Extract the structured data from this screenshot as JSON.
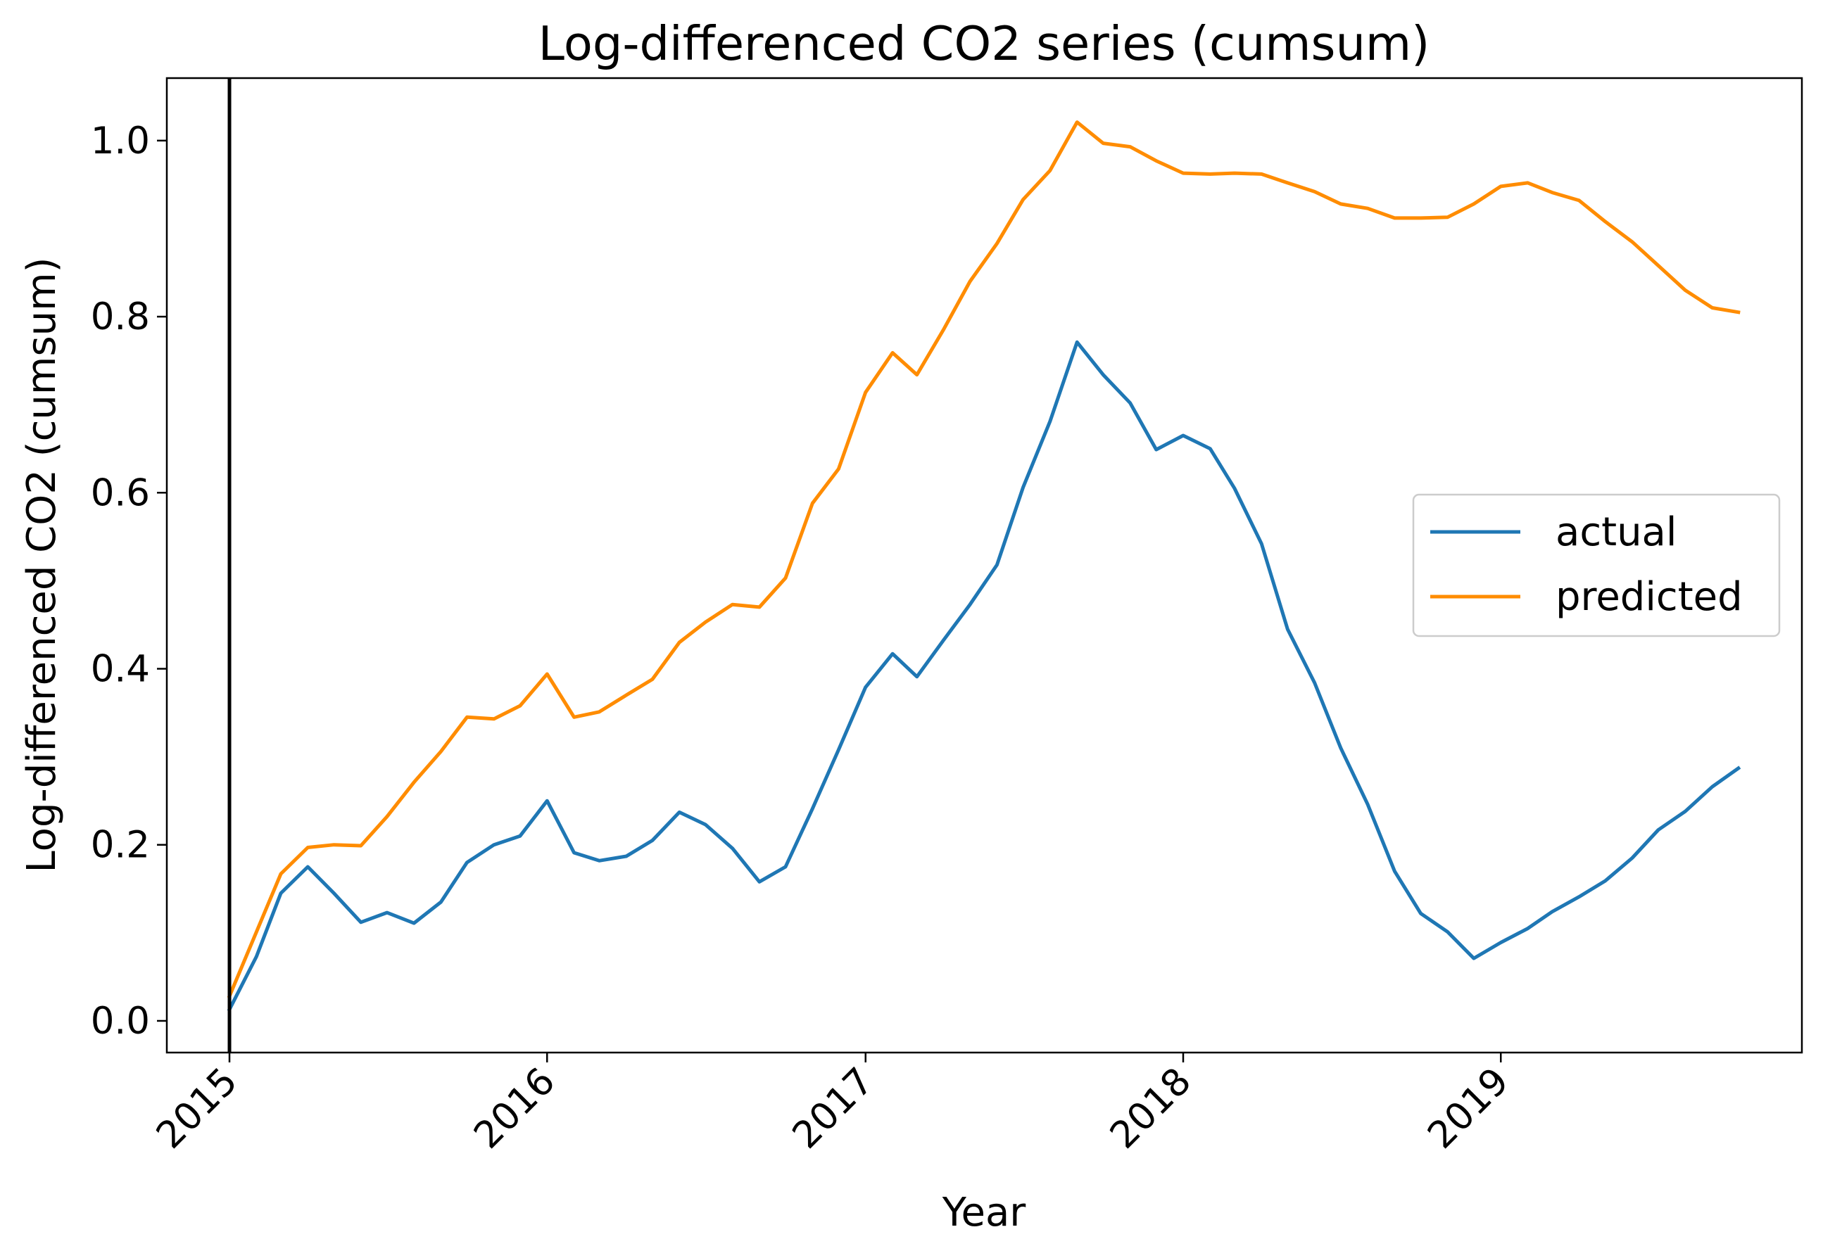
{
  "chart_data": {
    "type": "line",
    "title": "Log-differenced CO2 series (cumsum)",
    "xlabel": "Year",
    "ylabel": "Log-differenced CO2 (cumsum)",
    "xlim": [
      "2014-10-21",
      "2019-12-13"
    ],
    "ylim": [
      -0.036,
      1.071
    ],
    "x_ticks": [
      "2015",
      "2016",
      "2017",
      "2018",
      "2019"
    ],
    "x_tick_dates": [
      "2015-01-01",
      "2016-01-01",
      "2017-01-01",
      "2018-01-01",
      "2019-01-01"
    ],
    "y_ticks": [
      0.0,
      0.2,
      0.4,
      0.6,
      0.8,
      1.0
    ],
    "y_tick_labels": [
      "0.0",
      "0.2",
      "0.4",
      "0.6",
      "0.8",
      "1.0"
    ],
    "vertical_line": "2015-01-01",
    "grid": false,
    "legend_position": "center-right",
    "x": [
      "2015-01-01",
      "2015-02-01",
      "2015-03-01",
      "2015-04-01",
      "2015-05-01",
      "2015-06-01",
      "2015-07-01",
      "2015-08-01",
      "2015-09-01",
      "2015-10-01",
      "2015-11-01",
      "2015-12-01",
      "2016-01-01",
      "2016-02-01",
      "2016-03-01",
      "2016-04-01",
      "2016-05-01",
      "2016-06-01",
      "2016-07-01",
      "2016-08-01",
      "2016-09-01",
      "2016-10-01",
      "2016-11-01",
      "2016-12-01",
      "2017-01-01",
      "2017-02-01",
      "2017-03-01",
      "2017-04-01",
      "2017-05-01",
      "2017-06-01",
      "2017-07-01",
      "2017-08-01",
      "2017-09-01",
      "2017-10-01",
      "2017-11-01",
      "2017-12-01",
      "2018-01-01",
      "2018-02-01",
      "2018-03-01",
      "2018-04-01",
      "2018-05-01",
      "2018-06-01",
      "2018-07-01",
      "2018-08-01",
      "2018-09-01",
      "2018-10-01",
      "2018-11-01",
      "2018-12-01",
      "2019-01-01",
      "2019-02-01",
      "2019-03-01",
      "2019-04-01",
      "2019-05-01",
      "2019-06-01",
      "2019-07-01",
      "2019-08-01",
      "2019-09-01",
      "2019-10-01"
    ],
    "series": [
      {
        "name": "actual",
        "color": "#1f77b4",
        "values": [
          0.013,
          0.073,
          0.145,
          0.175,
          0.145,
          0.112,
          0.123,
          0.111,
          0.135,
          0.18,
          0.2,
          0.21,
          0.25,
          0.191,
          0.182,
          0.187,
          0.205,
          0.237,
          0.223,
          0.196,
          0.158,
          0.175,
          0.241,
          0.308,
          0.379,
          0.417,
          0.391,
          0.433,
          0.473,
          0.518,
          0.606,
          0.681,
          0.771,
          0.734,
          0.702,
          0.649,
          0.665,
          0.65,
          0.605,
          0.542,
          0.445,
          0.384,
          0.31,
          0.246,
          0.17,
          0.122,
          0.101,
          0.071,
          0.089,
          0.105,
          0.124,
          0.141,
          0.159,
          0.185,
          0.217,
          0.238,
          0.266,
          0.287
        ]
      },
      {
        "name": "predicted",
        "color": "#ff8c00",
        "values": [
          0.028,
          0.101,
          0.167,
          0.197,
          0.2,
          0.199,
          0.232,
          0.271,
          0.306,
          0.345,
          0.343,
          0.358,
          0.394,
          0.345,
          0.351,
          0.37,
          0.388,
          0.43,
          0.453,
          0.473,
          0.47,
          0.503,
          0.588,
          0.627,
          0.714,
          0.759,
          0.734,
          0.786,
          0.84,
          0.883,
          0.933,
          0.966,
          1.021,
          0.997,
          0.993,
          0.977,
          0.963,
          0.962,
          0.963,
          0.962,
          0.952,
          0.942,
          0.928,
          0.923,
          0.912,
          0.912,
          0.913,
          0.928,
          0.948,
          0.952,
          0.941,
          0.932,
          0.908,
          0.885,
          0.858,
          0.83,
          0.81,
          0.805
        ]
      }
    ]
  }
}
